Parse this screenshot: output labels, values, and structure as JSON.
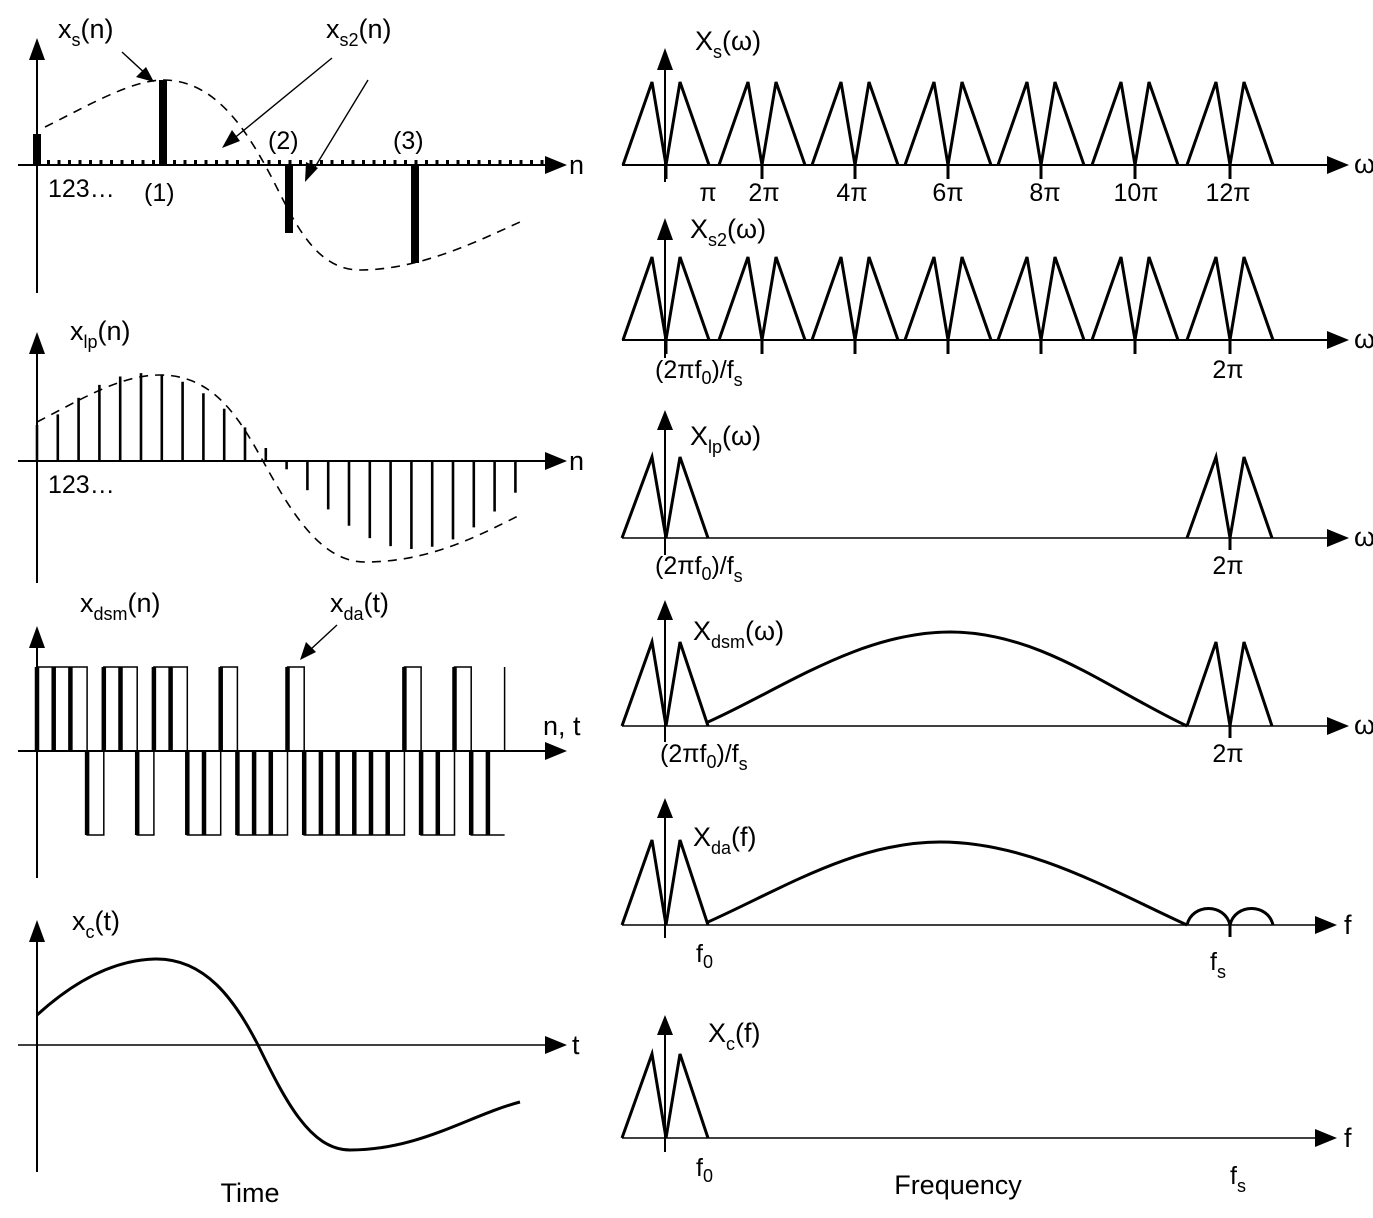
{
  "time_panels": {
    "xs": {
      "label": "x",
      "sub": "s",
      "arg": "(n)",
      "axis": "n",
      "index": "123…",
      "markers": [
        "(1)",
        "(2)",
        "(3)"
      ]
    },
    "xs2": {
      "label": "x",
      "sub": "s2",
      "arg": "(n)"
    },
    "xlp": {
      "label": "x",
      "sub": "lp",
      "arg": "(n)",
      "axis": "n",
      "index": "123…"
    },
    "xdsm": {
      "label": "x",
      "sub": "dsm",
      "arg": "(n)",
      "axis": "n, t"
    },
    "xda": {
      "label": "x",
      "sub": "da",
      "arg": "(t)"
    },
    "xc": {
      "label": "x",
      "sub": "c",
      "arg": "(t)",
      "axis": "t"
    },
    "caption": "Time"
  },
  "freq_panels": {
    "Xs": {
      "label": "X",
      "sub": "s",
      "arg": "(ω)",
      "axis": "ω",
      "ticks": [
        "π",
        "2π",
        "4π",
        "6π",
        "8π",
        "10π",
        "12π"
      ]
    },
    "Xs2": {
      "label": "X",
      "sub": "s2",
      "arg": "(ω)",
      "axis": "ω",
      "tick_left": "(2πf",
      "tick_left_sub": "0",
      "tick_left_tail": ")/f",
      "tick_left_tail_sub": "s",
      "tick_right": "2π"
    },
    "Xlp": {
      "label": "X",
      "sub": "lp",
      "arg": "(ω)",
      "axis": "ω",
      "tick_left": "(2πf",
      "tick_left_sub": "0",
      "tick_left_tail": ")/f",
      "tick_left_tail_sub": "s",
      "tick_right": "2π"
    },
    "Xdsm": {
      "label": "X",
      "sub": "dsm",
      "arg": "(ω)",
      "axis": "ω",
      "tick_left": "(2πf",
      "tick_left_sub": "0",
      "tick_left_tail": ")/f",
      "tick_left_tail_sub": "s",
      "tick_right": "2π"
    },
    "Xda": {
      "label": "X",
      "sub": "da",
      "arg": "(f)",
      "axis": "f",
      "tick_left": "f",
      "tick_left_sub": "0",
      "tick_right": "f",
      "tick_right_sub": "s"
    },
    "Xc": {
      "label": "X",
      "sub": "c",
      "arg": "(f)",
      "axis": "f",
      "tick_left": "f",
      "tick_left_sub": "0",
      "tick_right": "f",
      "tick_right_sub": "s"
    },
    "caption": "Frequency"
  },
  "dsm_levels": [
    1,
    1,
    1,
    0,
    1,
    1,
    0,
    1,
    1,
    0,
    0,
    1,
    0,
    0,
    0,
    1,
    0,
    0,
    0,
    0,
    0,
    0,
    1,
    0,
    0,
    1,
    0,
    0
  ],
  "lp_samples": 24,
  "colors": {
    "ink": "#000000",
    "paper": "#ffffff"
  }
}
